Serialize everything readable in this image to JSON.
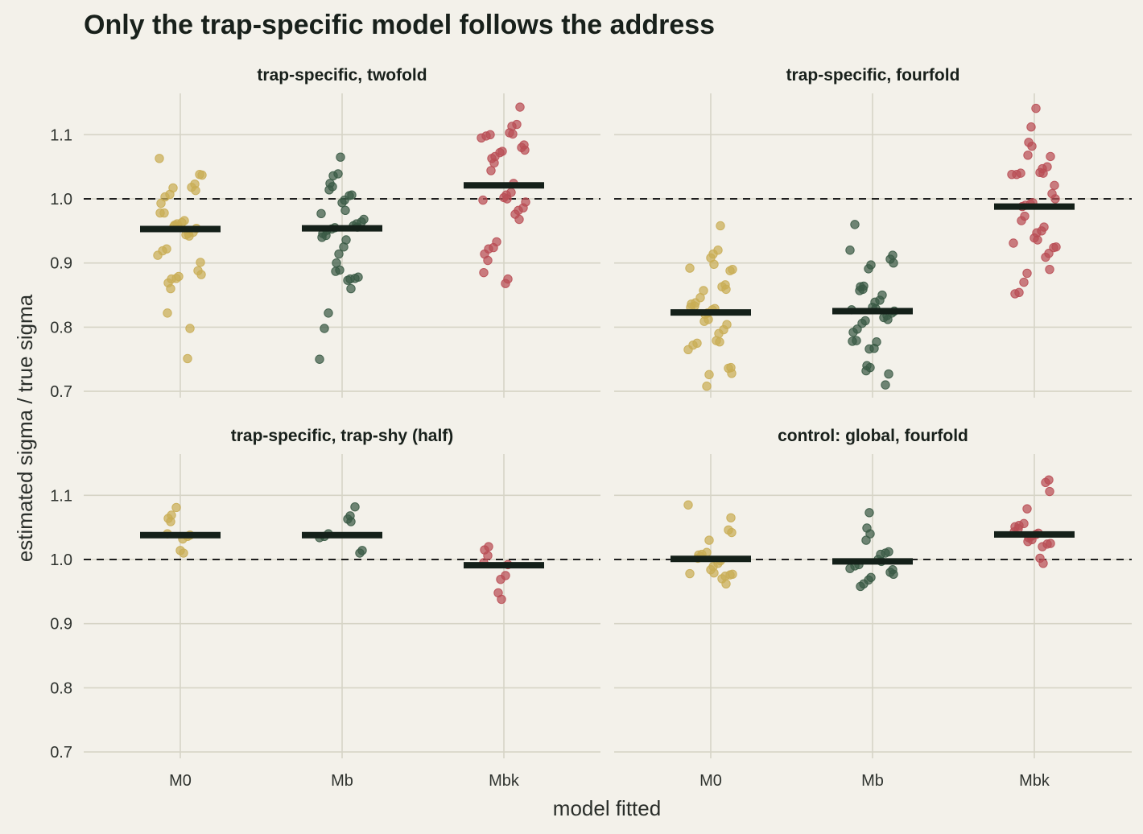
{
  "chart_data": {
    "type": "scatter",
    "title": "Only the trap-specific model follows the address",
    "xlabel": "model fitted",
    "ylabel": "estimated sigma / true sigma",
    "categories": [
      "M0",
      "Mb",
      "Mbk"
    ],
    "y_ticks": [
      "0.7",
      "0.8",
      "0.9",
      "1.0",
      "1.1"
    ],
    "ylim": [
      0.7,
      1.16
    ],
    "reference_line": 1.0,
    "colors": {
      "M0": "#c9ad55",
      "Mb": "#3a5a45",
      "Mbk": "#b94e55",
      "median": "#142019",
      "background": "#f3f1ea",
      "grid": "#d6d4c6"
    },
    "panels": [
      {
        "title": "trap-specific, twofold",
        "medians": {
          "M0": 0.953,
          "Mb": 0.954,
          "Mbk": 1.021
        },
        "points": {
          "M0": [
            1.063,
            1.037,
            1.038,
            1.023,
            1.018,
            1.013,
            1.017,
            1.007,
            1.003,
            0.993,
            0.978,
            0.978,
            0.966,
            0.963,
            0.961,
            0.959,
            0.958,
            0.957,
            0.954,
            0.948,
            0.946,
            0.944,
            0.942,
            0.922,
            0.919,
            0.912,
            0.901,
            0.888,
            0.882,
            0.879,
            0.876,
            0.875,
            0.869,
            0.86,
            0.822,
            0.798,
            0.751
          ],
          "Mb": [
            1.065,
            1.039,
            1.036,
            1.024,
            1.019,
            1.014,
            1.006,
            1.005,
            0.998,
            0.994,
            0.982,
            0.977,
            0.968,
            0.964,
            0.961,
            0.958,
            0.956,
            0.955,
            0.953,
            0.951,
            0.946,
            0.943,
            0.94,
            0.936,
            0.925,
            0.914,
            0.9,
            0.889,
            0.887,
            0.878,
            0.876,
            0.875,
            0.873,
            0.86,
            0.822,
            0.798,
            0.75
          ],
          "Mbk": [
            1.143,
            1.116,
            1.113,
            1.103,
            1.101,
            1.1,
            1.098,
            1.095,
            1.084,
            1.08,
            1.076,
            1.074,
            1.072,
            1.066,
            1.063,
            1.056,
            1.044,
            1.024,
            1.01,
            1.006,
            1.002,
            1.0,
            0.998,
            0.995,
            0.986,
            0.982,
            0.976,
            0.968,
            0.933,
            0.924,
            0.922,
            0.914,
            0.904,
            0.885,
            0.875,
            0.868
          ]
        }
      },
      {
        "title": "trap-specific, fourfold",
        "medians": {
          "M0": 0.823,
          "Mb": 0.825,
          "Mbk": 0.988
        },
        "points": {
          "M0": [
            0.958,
            0.92,
            0.914,
            0.908,
            0.898,
            0.892,
            0.89,
            0.888,
            0.866,
            0.863,
            0.859,
            0.857,
            0.846,
            0.838,
            0.836,
            0.833,
            0.831,
            0.829,
            0.827,
            0.822,
            0.82,
            0.812,
            0.809,
            0.804,
            0.796,
            0.79,
            0.779,
            0.777,
            0.775,
            0.772,
            0.765,
            0.737,
            0.736,
            0.728,
            0.726,
            0.708
          ],
          "Mb": [
            0.96,
            0.92,
            0.912,
            0.906,
            0.9,
            0.897,
            0.891,
            0.864,
            0.863,
            0.859,
            0.857,
            0.85,
            0.842,
            0.839,
            0.831,
            0.829,
            0.827,
            0.825,
            0.822,
            0.818,
            0.815,
            0.812,
            0.81,
            0.806,
            0.797,
            0.792,
            0.779,
            0.778,
            0.777,
            0.767,
            0.766,
            0.74,
            0.737,
            0.732,
            0.727,
            0.71
          ],
          "Mbk": [
            1.141,
            1.112,
            1.088,
            1.082,
            1.068,
            1.066,
            1.05,
            1.047,
            1.041,
            1.04,
            1.04,
            1.038,
            1.038,
            1.021,
            1.008,
            1.0,
            0.994,
            0.992,
            0.99,
            0.988,
            0.973,
            0.966,
            0.956,
            0.95,
            0.947,
            0.939,
            0.936,
            0.931,
            0.925,
            0.924,
            0.915,
            0.909,
            0.89,
            0.884,
            0.87,
            0.854,
            0.852
          ]
        }
      },
      {
        "title": "trap-specific, trap-shy (half)",
        "medians": {
          "M0": 1.038,
          "Mb": 1.038,
          "Mbk": 0.991
        },
        "points": {
          "M0": [
            1.081,
            1.069,
            1.064,
            1.059,
            1.04,
            1.038,
            1.036,
            1.032,
            1.014,
            1.01
          ],
          "Mb": [
            1.082,
            1.068,
            1.063,
            1.059,
            1.04,
            1.036,
            1.034,
            1.014,
            1.01
          ],
          "Mbk": [
            1.02,
            1.015,
            1.006,
            0.995,
            0.992,
            0.975,
            0.969,
            0.948,
            0.938
          ]
        }
      },
      {
        "title": "control: global, fourfold",
        "medians": {
          "M0": 1.001,
          "Mb": 0.997,
          "Mbk": 1.039
        },
        "points": {
          "M0": [
            1.085,
            1.065,
            1.046,
            1.042,
            1.03,
            1.011,
            1.008,
            1.007,
            1.004,
            1.002,
            0.998,
            0.994,
            0.989,
            0.984,
            0.979,
            0.978,
            0.977,
            0.976,
            0.974,
            0.97,
            0.962
          ],
          "Mb": [
            1.073,
            1.049,
            1.04,
            1.03,
            1.012,
            1.01,
            1.008,
            1.0,
            0.997,
            0.992,
            0.99,
            0.986,
            0.984,
            0.98,
            0.977,
            0.972,
            0.968,
            0.962,
            0.958
          ],
          "Mbk": [
            1.124,
            1.12,
            1.106,
            1.079,
            1.056,
            1.053,
            1.051,
            1.048,
            1.043,
            1.041,
            1.039,
            1.036,
            1.034,
            1.031,
            1.028,
            1.025,
            1.024,
            1.02,
            1.002,
            0.994
          ]
        }
      }
    ]
  }
}
